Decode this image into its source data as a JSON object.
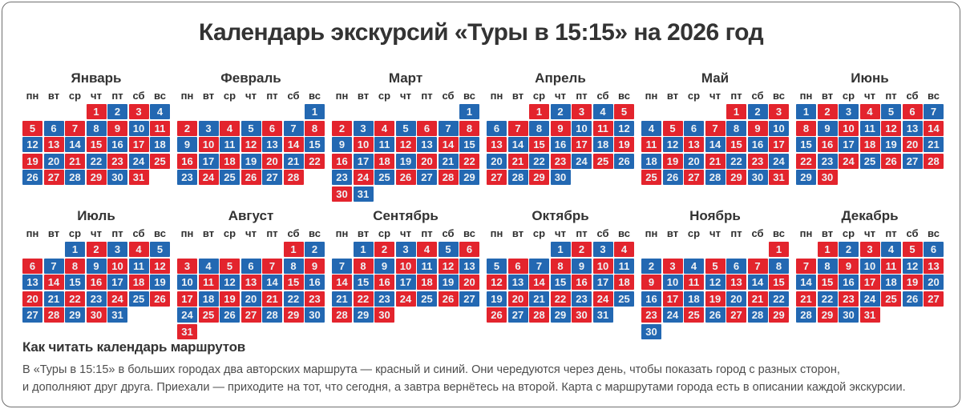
{
  "title": "Календарь экскурсий «Туры в 15:15» на 2026 год",
  "weekdays": [
    "пн",
    "вт",
    "ср",
    "чт",
    "пт",
    "сб",
    "вс"
  ],
  "colors": {
    "red": "#e3242d",
    "blue": "#2368b2",
    "cell_text": "#eef2f5",
    "heading": "#333333",
    "body_text": "#4d4d4d",
    "border": "#6f6f6f"
  },
  "months": [
    {
      "name": "Январь",
      "first_weekday": 3,
      "num_days": 31,
      "day_colors": "rbrbrbrbrbrbrbrbrbrbrbrbrbrbrbr"
    },
    {
      "name": "Февраль",
      "first_weekday": 6,
      "num_days": 28,
      "day_colors": "brbrbrbrbrbrbrbrbrbrbrbrbrbr"
    },
    {
      "name": "Март",
      "first_weekday": 6,
      "num_days": 31,
      "day_colors": "brbrbrbrbrbrbrbrbrbrbrbrbrbrbrb"
    },
    {
      "name": "Апрель",
      "first_weekday": 2,
      "num_days": 30,
      "day_colors": "rbrbrbrbrbrbrbrbrbrbrbrbrbrbrb"
    },
    {
      "name": "Май",
      "first_weekday": 4,
      "num_days": 31,
      "day_colors": "rbrbrbrbrbrbrbrbrbrbrbrbrbrbrbr"
    },
    {
      "name": "Июнь",
      "first_weekday": 0,
      "num_days": 30,
      "day_colors": "brbrbrbrbrbrbrbrbrbrbrbrbrbrbr"
    },
    {
      "name": "Июль",
      "first_weekday": 2,
      "num_days": 31,
      "day_colors": "brbrbrbrbrbrbrbrbrbrbrbrbrbrbrb"
    },
    {
      "name": "Август",
      "first_weekday": 5,
      "num_days": 31,
      "day_colors": "rbrbrbrbrbrbrbrbrbrbrbrbrbrbrbr"
    },
    {
      "name": "Сентябрь",
      "first_weekday": 1,
      "num_days": 30,
      "day_colors": "brbrbrbrbrbrbrbrbrbrbrbrbrbrbr"
    },
    {
      "name": "Октябрь",
      "first_weekday": 3,
      "num_days": 31,
      "day_colors": "brbrbrbrbrbrbrbrbrbrbrbrbrbrbrb"
    },
    {
      "name": "Ноябрь",
      "first_weekday": 6,
      "num_days": 30,
      "day_colors": "rbrbrbrbrbrbrbrbrbrbrbrbrbrbrb"
    },
    {
      "name": "Декабрь",
      "first_weekday": 1,
      "num_days": 31,
      "day_colors": "rbrbrbrbrbrbrbrbrbrbrbrbrbrbrbr"
    }
  ],
  "legend": {
    "heading": "Как читать календарь маршрутов",
    "line1": "В «Туры в 15:15» в больших городах два авторских маршрута — красный и синий. Они чередуются через день, чтобы показать город с разных сторон,",
    "line2": "и дополняют друг друга. Приехали — приходите на тот, что сегодня, а завтра вернётесь на второй. Карта с маршрутами города есть в описании каждой экскурсии."
  }
}
